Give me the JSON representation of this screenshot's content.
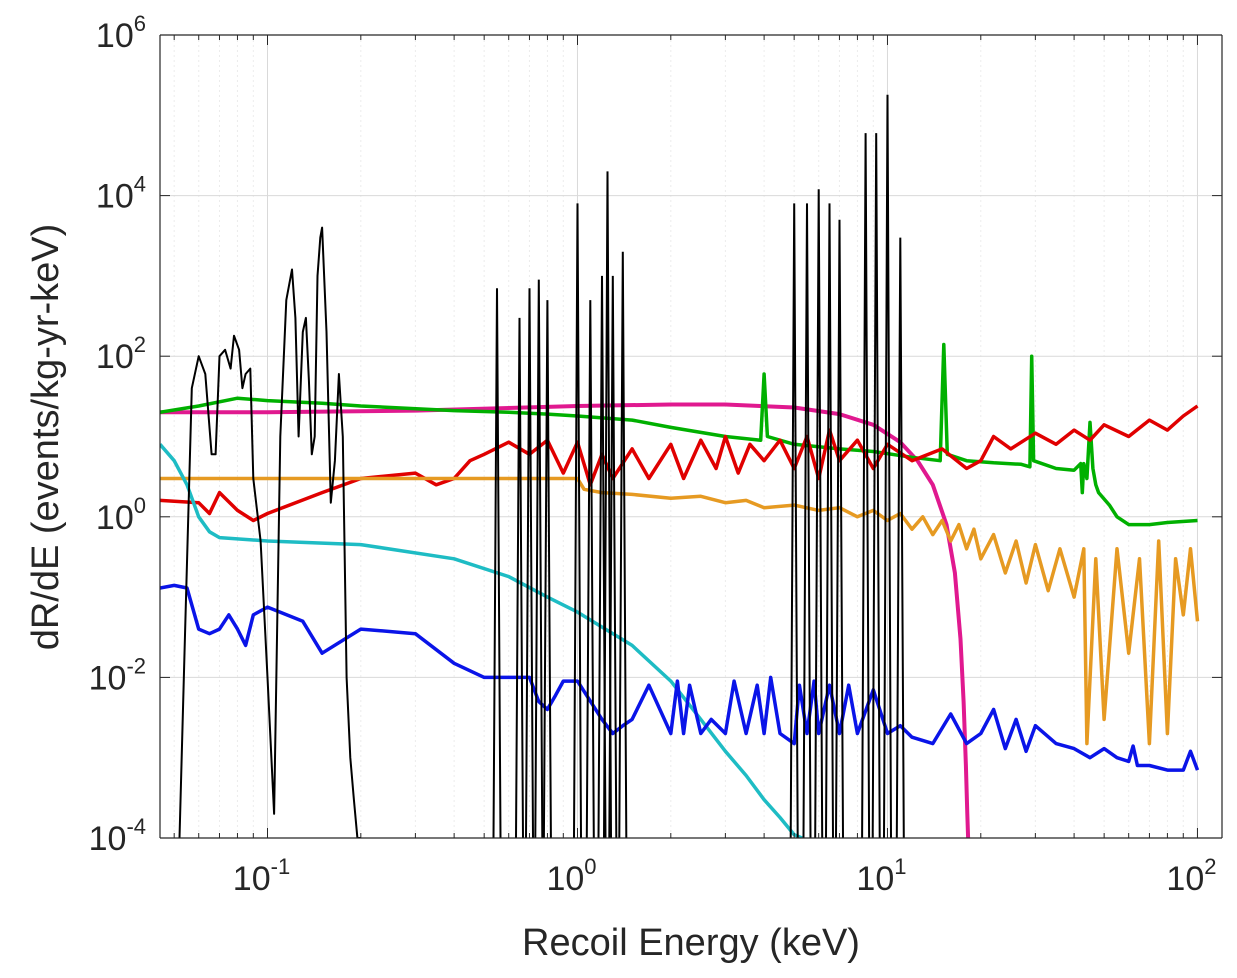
{
  "chart_data": {
    "type": "line",
    "title": "",
    "xlabel": "Recoil Energy (keV)",
    "ylabel": "dR/dE (events/kg-yr-keV)",
    "xscale": "log",
    "yscale": "log",
    "xlim": [
      0.045,
      120
    ],
    "ylim": [
      0.0001,
      1000000
    ],
    "grid": "on",
    "legend": "none",
    "x_ticks": [
      {
        "value": 0.1,
        "base": "10",
        "exp": "-1"
      },
      {
        "value": 1,
        "base": "10",
        "exp": "0"
      },
      {
        "value": 10,
        "base": "10",
        "exp": "1"
      },
      {
        "value": 100,
        "base": "10",
        "exp": "2"
      }
    ],
    "y_ticks": [
      {
        "value": 0.0001,
        "base": "10",
        "exp": "-4"
      },
      {
        "value": 0.01,
        "base": "10",
        "exp": "-2"
      },
      {
        "value": 1,
        "base": "10",
        "exp": "0"
      },
      {
        "value": 100,
        "base": "10",
        "exp": "2"
      },
      {
        "value": 10000,
        "base": "10",
        "exp": "4"
      },
      {
        "value": 1000000,
        "base": "10",
        "exp": "6"
      }
    ],
    "series": [
      {
        "color": "#e0198f",
        "width": 4,
        "x": [
          0.045,
          0.1,
          0.3,
          1,
          2,
          3,
          5,
          7,
          9,
          11,
          12.5,
          14,
          15.5,
          16.5,
          17.2,
          17.6,
          17.9,
          18.1,
          18.2
        ],
        "y": [
          20,
          20,
          21,
          24,
          25,
          25,
          23,
          19,
          14,
          8.5,
          5,
          2.5,
          0.8,
          0.2,
          0.03,
          0.005,
          0.0008,
          0.0002,
          0.0001
        ]
      },
      {
        "color": "#00b000",
        "width": 3.5,
        "x": [
          0.045,
          0.06,
          0.08,
          0.1,
          0.15,
          0.2,
          0.4,
          0.6,
          0.8,
          1,
          1.5,
          2,
          3,
          3.9,
          4,
          4.1,
          5,
          7,
          9,
          12,
          14.8,
          15.2,
          15.6,
          18,
          22,
          27,
          28.8,
          29.2,
          29.6,
          35,
          40,
          42,
          42.5,
          43,
          44,
          45,
          46,
          47,
          48,
          52,
          55,
          60,
          70,
          80,
          100
        ],
        "y": [
          20,
          24,
          30,
          28,
          26,
          24,
          21,
          20,
          19,
          18,
          16,
          13,
          10,
          9,
          60,
          10,
          8,
          7,
          6.5,
          5.5,
          5,
          140,
          6,
          5,
          4.7,
          4.5,
          4.2,
          100,
          5,
          4,
          3.8,
          4.6,
          2,
          4.6,
          3,
          15,
          4,
          2.5,
          2,
          1.4,
          1,
          0.8,
          0.8,
          0.85,
          0.9
        ]
      },
      {
        "color": "#e00000",
        "width": 3.5,
        "x": [
          0.045,
          0.06,
          0.065,
          0.07,
          0.08,
          0.09,
          0.1,
          0.15,
          0.2,
          0.3,
          0.35,
          0.4,
          0.45,
          0.5,
          0.6,
          0.7,
          0.8,
          0.9,
          1,
          1.1,
          1.2,
          1.3,
          1.5,
          1.7,
          2,
          2.2,
          2.5,
          2.8,
          3,
          3.3,
          3.6,
          4,
          4.5,
          5,
          5.5,
          6,
          6.5,
          7,
          8,
          9,
          10,
          12,
          15,
          18,
          20,
          22,
          25,
          30,
          35,
          40,
          45,
          50,
          60,
          70,
          80,
          90,
          100
        ],
        "y": [
          1.6,
          1.5,
          1.1,
          2.0,
          1.2,
          0.9,
          1.1,
          2.0,
          3.0,
          3.5,
          2.5,
          3.0,
          5.0,
          6.0,
          8.5,
          6.0,
          9.0,
          3.5,
          8.5,
          2.5,
          6.0,
          3.0,
          7.0,
          3.0,
          8.0,
          3.0,
          9.0,
          4.0,
          10.0,
          3.5,
          8.0,
          5.0,
          9.0,
          4.0,
          10.0,
          3.0,
          12.0,
          5.0,
          9.0,
          4.0,
          8.0,
          5.0,
          7.0,
          4.0,
          5.0,
          10.0,
          7.0,
          11.0,
          8.0,
          12.0,
          9.0,
          14.0,
          10.0,
          16.0,
          12.0,
          18.0,
          24.0
        ]
      },
      {
        "color": "#e69a22",
        "width": 3.5,
        "x": [
          0.045,
          0.1,
          0.5,
          1.0,
          1.05,
          1.2,
          1.5,
          2.0,
          2.5,
          3.0,
          3.5,
          4.0,
          5.0,
          6.0,
          7.0,
          8.0,
          9.0,
          10,
          11,
          12,
          13,
          14,
          15,
          16,
          17,
          18,
          19,
          20,
          22,
          24,
          26,
          28,
          30,
          33,
          36,
          40,
          43,
          44,
          47,
          50,
          55,
          60,
          65,
          70,
          75,
          80,
          85,
          90,
          95,
          100
        ],
        "y": [
          3.0,
          3.0,
          3.0,
          3.0,
          2.2,
          2.0,
          1.9,
          1.7,
          1.8,
          1.5,
          1.6,
          1.3,
          1.4,
          1.2,
          1.3,
          1.0,
          1.2,
          0.9,
          1.1,
          0.7,
          1.0,
          0.6,
          0.9,
          0.5,
          0.8,
          0.4,
          0.7,
          0.3,
          0.6,
          0.2,
          0.5,
          0.15,
          0.45,
          0.12,
          0.4,
          0.1,
          0.4,
          0.0015,
          0.3,
          0.003,
          0.4,
          0.02,
          0.3,
          0.0015,
          0.5,
          0.002,
          0.3,
          0.06,
          0.4,
          0.05
        ]
      },
      {
        "color": "#1ebcc4",
        "width": 3.5,
        "x": [
          0.045,
          0.05,
          0.055,
          0.06,
          0.065,
          0.07,
          0.1,
          0.2,
          0.4,
          0.6,
          0.8,
          1.0,
          1.5,
          2.0,
          2.5,
          3.0,
          3.5,
          4.0,
          4.5,
          5.0,
          5.3
        ],
        "y": [
          8.0,
          5.0,
          2.5,
          1.0,
          0.65,
          0.55,
          0.5,
          0.45,
          0.3,
          0.18,
          0.1,
          0.065,
          0.025,
          0.009,
          0.003,
          0.0012,
          0.0006,
          0.0003,
          0.00018,
          0.00011,
          0.0001
        ]
      },
      {
        "color": "#0a14e8",
        "width": 3.5,
        "x": [
          0.045,
          0.05,
          0.055,
          0.06,
          0.065,
          0.07,
          0.075,
          0.08,
          0.085,
          0.09,
          0.1,
          0.13,
          0.15,
          0.2,
          0.3,
          0.4,
          0.5,
          0.7,
          0.75,
          0.8,
          0.85,
          0.9,
          1.0,
          1.2,
          1.3,
          1.4,
          1.5,
          1.7,
          2.0,
          2.1,
          2.2,
          2.3,
          2.5,
          2.7,
          3.0,
          3.2,
          3.5,
          3.8,
          4.0,
          4.2,
          4.5,
          5.0,
          5.2,
          5.5,
          5.8,
          6.0,
          6.5,
          7.0,
          7.5,
          8.0,
          9.0,
          10,
          11,
          12,
          14,
          16,
          18,
          20,
          22,
          24,
          26,
          28,
          30,
          35,
          40,
          45,
          50,
          55,
          60,
          62,
          64,
          70,
          80,
          90,
          95,
          100
        ],
        "y": [
          0.13,
          0.14,
          0.13,
          0.04,
          0.035,
          0.04,
          0.06,
          0.04,
          0.025,
          0.06,
          0.075,
          0.05,
          0.02,
          0.04,
          0.035,
          0.015,
          0.01,
          0.01,
          0.005,
          0.004,
          0.006,
          0.009,
          0.009,
          0.003,
          0.002,
          0.0025,
          0.003,
          0.008,
          0.002,
          0.009,
          0.002,
          0.008,
          0.002,
          0.003,
          0.002,
          0.009,
          0.002,
          0.008,
          0.002,
          0.01,
          0.002,
          0.0015,
          0.008,
          0.002,
          0.009,
          0.002,
          0.008,
          0.002,
          0.008,
          0.002,
          0.007,
          0.002,
          0.0025,
          0.0018,
          0.0015,
          0.0035,
          0.0015,
          0.002,
          0.004,
          0.0013,
          0.003,
          0.0012,
          0.0025,
          0.0015,
          0.0013,
          0.001,
          0.0013,
          0.001,
          0.0009,
          0.0014,
          0.0008,
          0.0008,
          0.0007,
          0.0007,
          0.0012,
          0.0007
        ]
      },
      {
        "color": "#000000",
        "width": 2,
        "x": [
          0.052,
          0.054,
          0.057,
          0.06,
          0.063,
          0.066,
          0.068,
          0.07,
          0.073,
          0.076,
          0.078,
          0.081,
          0.083,
          0.085,
          0.088,
          0.09,
          0.095,
          0.1,
          0.105,
          0.11,
          0.115,
          0.12,
          0.123,
          0.126,
          0.13,
          0.133,
          0.136,
          0.139,
          0.142,
          0.145,
          0.148,
          0.15,
          0.155,
          0.16,
          0.165,
          0.17,
          0.175,
          0.18,
          0.185,
          0.19,
          0.195,
          0.2
        ],
        "y": [
          0.0001,
          0.02,
          40,
          100,
          60,
          6,
          6,
          100,
          120,
          70,
          180,
          120,
          40,
          60,
          70,
          3,
          0.5,
          0.01,
          0.0002,
          10,
          500,
          1200,
          300,
          10,
          200,
          300,
          50,
          6,
          10,
          1000,
          3000,
          4000,
          200,
          1.5,
          5,
          60,
          10,
          0.01,
          0.001,
          0.0003,
          0.0001,
          0.0001
        ]
      }
    ],
    "spikes": {
      "color": "#000000",
      "x": [
        0.55,
        0.65,
        0.7,
        0.75,
        0.8,
        1.0,
        1.1,
        1.2,
        1.25,
        1.3,
        1.4,
        5.0,
        5.5,
        6.0,
        6.5,
        7.0,
        8.5,
        9.2,
        10.0,
        11.0
      ],
      "peaks": [
        700,
        300,
        700,
        900,
        500,
        8000,
        500,
        1000,
        20000,
        1000,
        2000,
        8000,
        8000,
        12000,
        8000,
        5000,
        60000,
        60000,
        180000,
        3000
      ]
    }
  }
}
